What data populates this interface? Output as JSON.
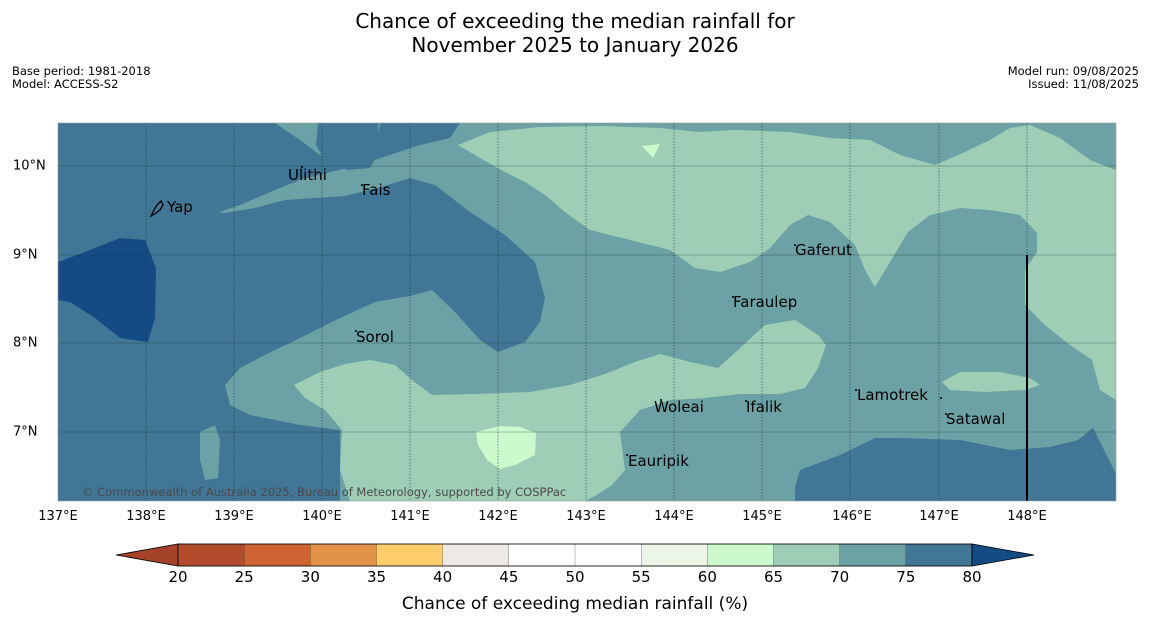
{
  "title_line1": "Chance of exceeding the median rainfall for",
  "title_line2": "November 2025 to January 2026",
  "meta_left": {
    "base_period": "Base period: 1981-2018",
    "model": "Model: ACCESS-S2"
  },
  "meta_right": {
    "model_run": "Model run: 09/08/2025",
    "issued": "Issued: 11/08/2025"
  },
  "map": {
    "lon_labels": [
      "137°E",
      "138°E",
      "139°E",
      "140°E",
      "141°E",
      "142°E",
      "143°E",
      "144°E",
      "145°E",
      "146°E",
      "147°E",
      "148°E"
    ],
    "lat_labels": [
      "10°N",
      "9°N",
      "8°N",
      "7°N"
    ],
    "places": [
      "Ulithi",
      "Fais",
      "Yap",
      "Gaferut",
      "Faraulep",
      "Sorol",
      "Woleai",
      "Ifalik",
      "Lamotrek",
      "Satawal",
      "Eauripik"
    ],
    "copyright": "© Commonwealth of Australia 2025, Bureau of Meteorology, supported by COSPPac",
    "category_colors": {
      "60-65": "#ccfacc",
      "65-70": "#9ecfb6",
      "70-75": "#6ca2a5",
      "75-80": "#417696",
      "80+": "#144b85"
    }
  },
  "colorbar": {
    "ticks": [
      "20",
      "25",
      "30",
      "35",
      "40",
      "45",
      "50",
      "55",
      "60",
      "65",
      "70",
      "75",
      "80"
    ],
    "colors": [
      "#a5432a",
      "#b24c2c",
      "#cf6433",
      "#e39347",
      "#fdce6b",
      "#ede9e4",
      "#ffffff",
      "#ffffff",
      "#ebf5e8",
      "#ccfacc",
      "#9ecfb6",
      "#6ca2a5",
      "#417696",
      "#144b85"
    ],
    "label": "Chance of exceeding median rainfall (%)"
  }
}
